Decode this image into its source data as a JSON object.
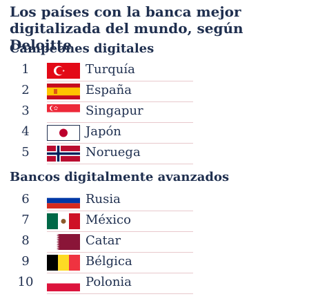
{
  "title": "Los países con la banca mejor digitalizada del mundo, según Deloitte",
  "chart_data": {
    "type": "table",
    "title": "Los países con la banca mejor digitalizada del mundo, según Deloitte",
    "groups": [
      {
        "label": "Campeones digitales",
        "rows": [
          {
            "rank": "1",
            "country": "Turquía",
            "flag": "turkey-flag-icon"
          },
          {
            "rank": "2",
            "country": "España",
            "flag": "spain-flag-icon"
          },
          {
            "rank": "3",
            "country": "Singapur",
            "flag": "singapore-flag-icon"
          },
          {
            "rank": "4",
            "country": "Japón",
            "flag": "japan-flag-icon"
          },
          {
            "rank": "5",
            "country": "Noruega",
            "flag": "norway-flag-icon"
          }
        ]
      },
      {
        "label": "Bancos digitalmente avanzados",
        "rows": [
          {
            "rank": "6",
            "country": "Rusia",
            "flag": "russia-flag-icon"
          },
          {
            "rank": "7",
            "country": "México",
            "flag": "mexico-flag-icon"
          },
          {
            "rank": "8",
            "country": "Catar",
            "flag": "qatar-flag-icon"
          },
          {
            "rank": "9",
            "country": "Bélgica",
            "flag": "belgium-flag-icon"
          },
          {
            "rank": "10",
            "country": "Polonia",
            "flag": "poland-flag-icon"
          }
        ]
      }
    ]
  },
  "colors": {
    "text": "#1f2f4f",
    "divider": "#e8c8cc"
  }
}
